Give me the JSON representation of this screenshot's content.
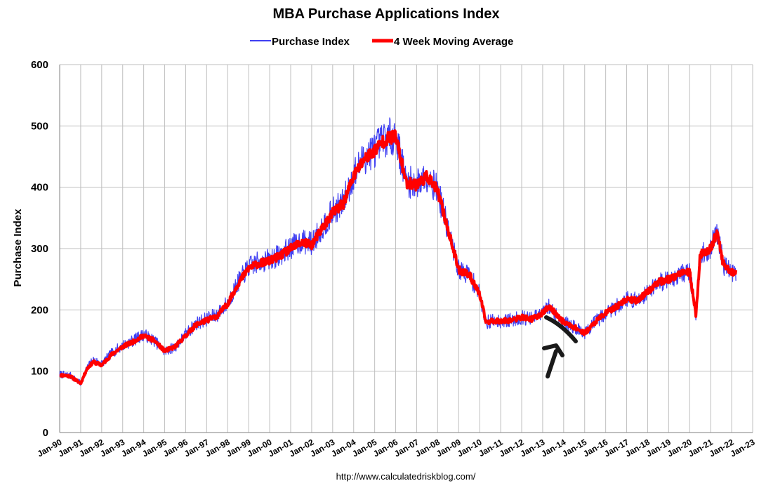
{
  "chart_data": {
    "type": "line",
    "title": "MBA Purchase Applications Index",
    "xlabel": "",
    "ylabel": "Purchase Index",
    "ylim": [
      0,
      600
    ],
    "yticks": [
      0,
      100,
      200,
      300,
      400,
      500,
      600
    ],
    "xlim": [
      1990,
      2023
    ],
    "xticks": [
      "Jan-90",
      "Jan-91",
      "Jan-92",
      "Jan-93",
      "Jan-94",
      "Jan-95",
      "Jan-96",
      "Jan-97",
      "Jan-98",
      "Jan-99",
      "Jan-00",
      "Jan-01",
      "Jan-02",
      "Jan-03",
      "Jan-04",
      "Jan-05",
      "Jan-06",
      "Jan-07",
      "Jan-08",
      "Jan-09",
      "Jan-10",
      "Jan-11",
      "Jan-12",
      "Jan-13",
      "Jan-14",
      "Jan-15",
      "Jan-16",
      "Jan-17",
      "Jan-18",
      "Jan-19",
      "Jan-20",
      "Jan-21",
      "Jan-22",
      "Jan-23"
    ],
    "grid": true,
    "legend_position": "top-center",
    "source": "http://www.calculatedriskblog.com/",
    "colors": {
      "weekly": "#3f3ff2",
      "average": "#ff0000",
      "grid": "#bfbfbf",
      "annotation": "#1a1a1a"
    },
    "series": [
      {
        "name": "Purchase Index",
        "x": [
          1990.0,
          1990.5,
          1991.0,
          1991.3,
          1991.6,
          1992.0,
          1992.5,
          1993.0,
          1993.5,
          1994.0,
          1994.5,
          1995.0,
          1995.5,
          1996.0,
          1996.5,
          1997.0,
          1997.5,
          1998.0,
          1998.5,
          1999.0,
          1999.5,
          2000.0,
          2000.5,
          2001.0,
          2001.5,
          2002.0,
          2002.5,
          2003.0,
          2003.5,
          2004.0,
          2004.5,
          2005.0,
          2005.5,
          2006.0,
          2006.5,
          2007.0,
          2007.5,
          2008.0,
          2008.5,
          2009.0,
          2009.5,
          2010.0,
          2010.3,
          2010.6,
          2011.0,
          2011.5,
          2012.0,
          2012.5,
          2013.0,
          2013.3,
          2013.6,
          2014.0,
          2014.5,
          2015.0,
          2015.5,
          2016.0,
          2016.5,
          2017.0,
          2017.5,
          2018.0,
          2018.5,
          2019.0,
          2019.5,
          2020.0,
          2020.3,
          2020.5,
          2021.0,
          2021.3,
          2021.6,
          2022.0,
          2022.2
        ],
        "values": [
          95,
          93,
          80,
          105,
          118,
          112,
          130,
          142,
          150,
          160,
          150,
          132,
          140,
          160,
          178,
          185,
          192,
          212,
          245,
          270,
          278,
          282,
          290,
          302,
          312,
          308,
          335,
          360,
          375,
          420,
          448,
          462,
          480,
          485,
          410,
          405,
          420,
          395,
          330,
          265,
          258,
          225,
          180,
          182,
          182,
          183,
          188,
          185,
          195,
          205,
          195,
          180,
          172,
          162,
          180,
          195,
          205,
          218,
          215,
          230,
          245,
          250,
          258,
          262,
          190,
          290,
          300,
          328,
          275,
          262,
          262
        ]
      },
      {
        "name": "4 Week Moving Average",
        "x": [
          1990.0,
          1990.5,
          1991.0,
          1991.3,
          1991.6,
          1992.0,
          1992.5,
          1993.0,
          1993.5,
          1994.0,
          1994.5,
          1995.0,
          1995.5,
          1996.0,
          1996.5,
          1997.0,
          1997.5,
          1998.0,
          1998.5,
          1999.0,
          1999.5,
          2000.0,
          2000.5,
          2001.0,
          2001.5,
          2002.0,
          2002.5,
          2003.0,
          2003.5,
          2004.0,
          2004.5,
          2005.0,
          2005.5,
          2006.0,
          2006.5,
          2007.0,
          2007.5,
          2008.0,
          2008.5,
          2009.0,
          2009.5,
          2010.0,
          2010.3,
          2010.6,
          2011.0,
          2011.5,
          2012.0,
          2012.5,
          2013.0,
          2013.3,
          2013.6,
          2014.0,
          2014.5,
          2015.0,
          2015.5,
          2016.0,
          2016.5,
          2017.0,
          2017.5,
          2018.0,
          2018.5,
          2019.0,
          2019.5,
          2020.0,
          2020.3,
          2020.5,
          2021.0,
          2021.3,
          2021.6,
          2022.0,
          2022.2
        ],
        "values": [
          94,
          92,
          80,
          104,
          115,
          110,
          128,
          140,
          148,
          158,
          150,
          133,
          140,
          158,
          176,
          183,
          190,
          210,
          243,
          268,
          276,
          280,
          288,
          300,
          310,
          306,
          333,
          358,
          373,
          418,
          446,
          460,
          478,
          483,
          408,
          404,
          418,
          394,
          330,
          265,
          258,
          225,
          180,
          182,
          182,
          183,
          188,
          185,
          195,
          205,
          195,
          180,
          172,
          162,
          180,
          195,
          205,
          218,
          215,
          230,
          245,
          250,
          258,
          262,
          190,
          290,
          300,
          326,
          275,
          262,
          262
        ]
      }
    ]
  }
}
